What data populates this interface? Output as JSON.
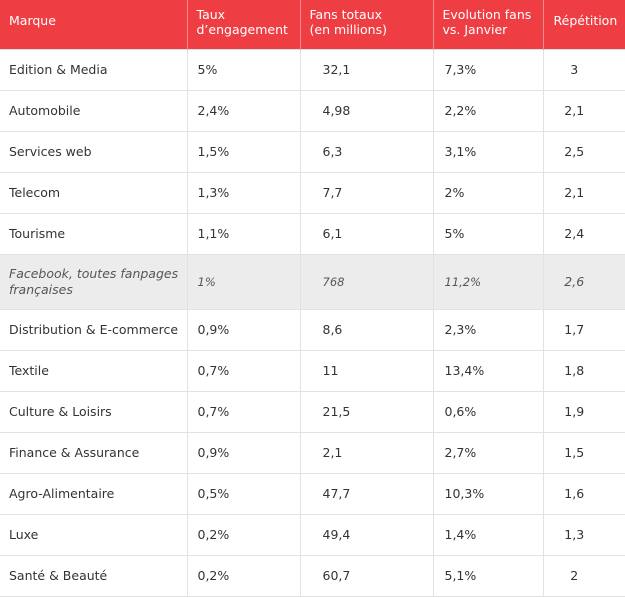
{
  "chart_data": {
    "type": "table",
    "columns": [
      "Marque",
      "Taux d’engagement",
      "Fans totaux (en millions)",
      "Evolution fans vs. Janvier",
      "Répétition"
    ],
    "header_lines": [
      [
        "Marque"
      ],
      [
        "Taux",
        "d’engagement"
      ],
      [
        "Fans totaux",
        "(en millions)"
      ],
      [
        "Evolution fans",
        "vs. Janvier"
      ],
      [
        "Répétition"
      ]
    ],
    "rows": [
      {
        "marque": "Edition & Media",
        "taux": "5%",
        "fans": "32,1",
        "evolution": "7,3%",
        "repetition": "3"
      },
      {
        "marque": "Automobile",
        "taux": "2,4%",
        "fans": "4,98",
        "evolution": "2,2%",
        "repetition": "2,1"
      },
      {
        "marque": "Services web",
        "taux": "1,5%",
        "fans": "6,3",
        "evolution": "3,1%",
        "repetition": "2,5"
      },
      {
        "marque": "Telecom",
        "taux": "1,3%",
        "fans": "7,7",
        "evolution": "2%",
        "repetition": "2,1"
      },
      {
        "marque": "Tourisme",
        "taux": "1,1%",
        "fans": "6,1",
        "evolution": "5%",
        "repetition": "2,4"
      },
      {
        "marque": "Facebook, toutes fanpages françaises",
        "taux": "1%",
        "fans": "768",
        "evolution": "11,2%",
        "repetition": "2,6",
        "highlight": true
      },
      {
        "marque": "Distribution & E-commerce",
        "taux": "0,9%",
        "fans": "8,6",
        "evolution": "2,3%",
        "repetition": "1,7"
      },
      {
        "marque": "Textile",
        "taux": "0,7%",
        "fans": "11",
        "evolution": "13,4%",
        "repetition": "1,8"
      },
      {
        "marque": "Culture & Loisirs",
        "taux": "0,7%",
        "fans": "21,5",
        "evolution": "0,6%",
        "repetition": "1,9"
      },
      {
        "marque": "Finance & Assurance",
        "taux": "0,9%",
        "fans": "2,1",
        "evolution": "2,7%",
        "repetition": "1,5"
      },
      {
        "marque": "Agro-Alimentaire",
        "taux": "0,5%",
        "fans": "47,7",
        "evolution": "10,3%",
        "repetition": "1,6"
      },
      {
        "marque": "Luxe",
        "taux": "0,2%",
        "fans": "49,4",
        "evolution": "1,4%",
        "repetition": "1,3"
      },
      {
        "marque": "Santé & Beauté",
        "taux": "0,2%",
        "fans": "60,7",
        "evolution": "5,1%",
        "repetition": "2"
      }
    ]
  },
  "colors": {
    "header_bg": "#ee3e43",
    "header_text": "#ffffff",
    "highlight_row_bg": "#ececec",
    "grid": "#e2e2e2"
  }
}
